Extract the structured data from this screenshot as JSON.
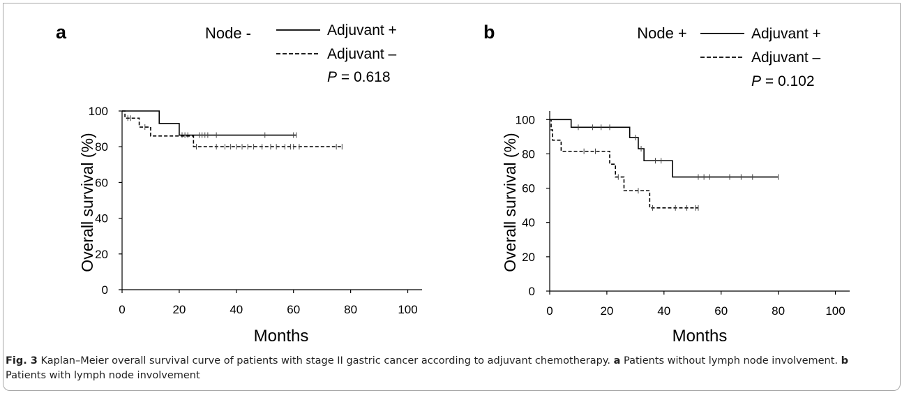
{
  "figure_caption": {
    "label": "Fig. 3",
    "text_1": " Kaplan–Meier overall survival curve of patients with stage II gastric cancer according to adjuvant chemotherapy. ",
    "a_label": "a",
    "text_2": " Patients without lymph node involvement. ",
    "b_label": "b",
    "text_3": " Patients with lymph node involvement"
  },
  "chart_data": [
    {
      "type": "line",
      "subtype": "kaplan-meier step",
      "panel_label": "a",
      "title": "Node -",
      "xlabel": "Months",
      "ylabel": "Overall survival (%)",
      "xlim": [
        0,
        105
      ],
      "ylim": [
        0,
        100
      ],
      "xticks": [
        0,
        20,
        40,
        60,
        80,
        100
      ],
      "yticks": [
        0,
        20,
        40,
        60,
        80,
        100
      ],
      "grid": false,
      "legend_position": "top-right",
      "p_value_prefix": "P",
      "p_value_text": " = 0.618",
      "series": [
        {
          "name": "Adjuvant +",
          "line_style": "solid",
          "color": "#000000",
          "steps": [
            [
              0,
              100
            ],
            [
              13,
              93
            ],
            [
              20,
              86.5
            ]
          ],
          "end_x": 61,
          "censors": [
            [
              21,
              86.5
            ],
            [
              22,
              86.5
            ],
            [
              23,
              86.5
            ],
            [
              27,
              86.5
            ],
            [
              28,
              86.5
            ],
            [
              29,
              86.5
            ],
            [
              30,
              86.5
            ],
            [
              33,
              86.5
            ],
            [
              50,
              86.5
            ],
            [
              60,
              86.5
            ],
            [
              61,
              86.5
            ]
          ]
        },
        {
          "name": "Adjuvant –",
          "line_style": "dashed",
          "color": "#000000",
          "steps": [
            [
              0,
              100
            ],
            [
              1,
              96
            ],
            [
              6,
              91
            ],
            [
              10,
              86
            ],
            [
              25,
              80
            ]
          ],
          "end_x": 77,
          "censors": [
            [
              2,
              96
            ],
            [
              3,
              96
            ],
            [
              8,
              91
            ],
            [
              26,
              80
            ],
            [
              33,
              80
            ],
            [
              36,
              80
            ],
            [
              38,
              80
            ],
            [
              40,
              80
            ],
            [
              42,
              80
            ],
            [
              44,
              80
            ],
            [
              46,
              80
            ],
            [
              49,
              80
            ],
            [
              52,
              80
            ],
            [
              54,
              80
            ],
            [
              57,
              80
            ],
            [
              59,
              80
            ],
            [
              60,
              80
            ],
            [
              62,
              80
            ],
            [
              75,
              80
            ],
            [
              77,
              80
            ]
          ]
        }
      ]
    },
    {
      "type": "line",
      "subtype": "kaplan-meier step",
      "panel_label": "b",
      "title": "Node +",
      "xlabel": "Months",
      "ylabel": "Overall survival (%)",
      "xlim": [
        0,
        105
      ],
      "ylim": [
        0,
        105
      ],
      "xticks": [
        0,
        20,
        40,
        60,
        80,
        100
      ],
      "yticks": [
        0,
        20,
        40,
        60,
        80,
        100
      ],
      "grid": false,
      "legend_position": "top-right",
      "p_value_prefix": "P",
      "p_value_text": " = 0.102",
      "series": [
        {
          "name": "Adjuvant +",
          "line_style": "solid",
          "color": "#000000",
          "steps": [
            [
              0,
              100
            ],
            [
              7.5,
              95.5
            ],
            [
              28,
              89.5
            ],
            [
              31,
              83
            ],
            [
              33,
              76
            ],
            [
              43,
              66.5
            ]
          ],
          "end_x": 80,
          "censors": [
            [
              10,
              95.5
            ],
            [
              15,
              95.5
            ],
            [
              18,
              95.5
            ],
            [
              21,
              95.5
            ],
            [
              30,
              89.5
            ],
            [
              32,
              83
            ],
            [
              37,
              76
            ],
            [
              39,
              76
            ],
            [
              52,
              66.5
            ],
            [
              54,
              66.5
            ],
            [
              56,
              66.5
            ],
            [
              63,
              66.5
            ],
            [
              67,
              66.5
            ],
            [
              71,
              66.5
            ],
            [
              80,
              66.5
            ]
          ]
        },
        {
          "name": "Adjuvant –",
          "line_style": "dashed",
          "color": "#000000",
          "steps": [
            [
              0,
              100
            ],
            [
              0.5,
              94
            ],
            [
              1,
              88
            ],
            [
              4,
              81.5
            ],
            [
              21,
              74
            ],
            [
              23,
              66.5
            ],
            [
              26,
              58.5
            ],
            [
              35,
              48.5
            ]
          ],
          "end_x": 52,
          "censors": [
            [
              12,
              81.5
            ],
            [
              16,
              81.5
            ],
            [
              24,
              66.5
            ],
            [
              31,
              58.5
            ],
            [
              36,
              48.5
            ],
            [
              44,
              48.5
            ],
            [
              48,
              48.5
            ],
            [
              51,
              48.5
            ],
            [
              52,
              48.5
            ]
          ]
        }
      ]
    }
  ]
}
